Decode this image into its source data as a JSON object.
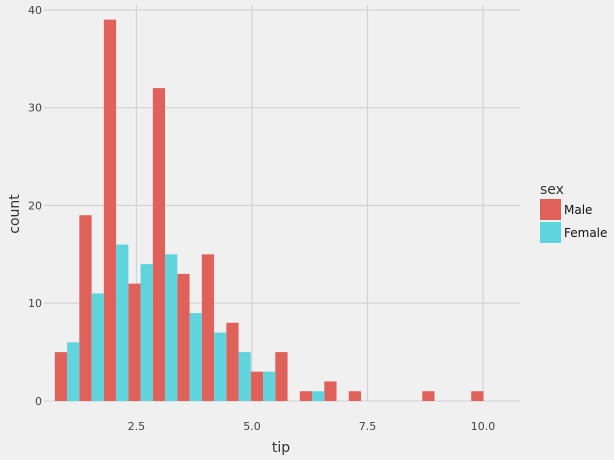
{
  "chart_data": {
    "type": "bar",
    "title": "",
    "xlabel": "tip",
    "ylabel": "count",
    "xlim": [
      0.5,
      10.8
    ],
    "ylim": [
      0,
      40.5
    ],
    "x_ticks": [
      2.5,
      5.0,
      7.5,
      10.0
    ],
    "x_tick_labels": [
      "2.5",
      "5.0",
      "7.5",
      "10.0"
    ],
    "y_ticks": [
      0,
      10,
      20,
      30,
      40
    ],
    "y_tick_labels": [
      "0",
      "10",
      "20",
      "30",
      "40"
    ],
    "grid": true,
    "legend": {
      "title": "sex",
      "placement": "right"
    },
    "bin_width": 0.53,
    "bin_centers": [
      1.0,
      1.53,
      2.06,
      2.59,
      3.12,
      3.65,
      4.18,
      4.71,
      5.24,
      5.77,
      6.3,
      6.83,
      7.36,
      7.89,
      8.42,
      8.95,
      9.48,
      10.01
    ],
    "series": [
      {
        "name": "Male",
        "color": "#e0605a",
        "values": [
          5,
          19,
          39,
          12,
          32,
          13,
          15,
          8,
          3,
          5,
          1,
          2,
          1,
          0,
          0,
          1,
          0,
          1
        ]
      },
      {
        "name": "Female",
        "color": "#5fd4dc",
        "values": [
          6,
          11,
          16,
          14,
          15,
          9,
          7,
          5,
          3,
          0,
          1,
          0,
          0,
          0,
          0,
          0,
          0,
          0
        ]
      }
    ]
  }
}
